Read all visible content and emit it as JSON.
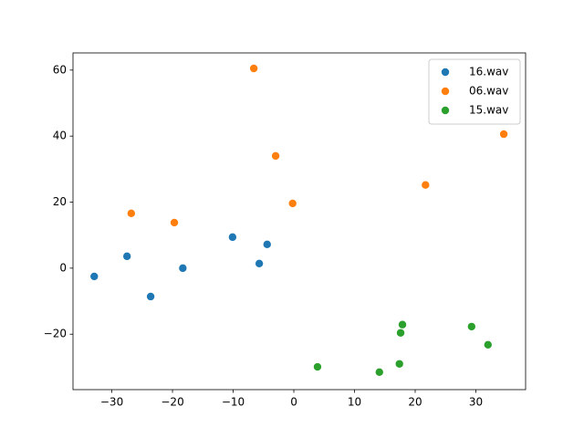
{
  "chart_data": {
    "type": "scatter",
    "series": [
      {
        "name": "16.wav",
        "color": "#1f77b4",
        "x": [
          -32.9,
          -27.5,
          -23.6,
          -18.3,
          -10.1,
          -5.7,
          -4.4
        ],
        "values": [
          -2.5,
          3.6,
          -8.6,
          0,
          9.4,
          1.4,
          7.2
        ]
      },
      {
        "name": "06.wav",
        "color": "#ff7f0e",
        "x": [
          -6.6,
          -3.0,
          -0.2,
          -26.8,
          -19.7,
          21.7,
          34.6
        ],
        "values": [
          60.5,
          34.0,
          19.6,
          16.6,
          13.8,
          25.2,
          40.6
        ]
      },
      {
        "name": "15.wav",
        "color": "#2ca02c",
        "x": [
          3.9,
          14.1,
          17.4,
          17.6,
          17.9,
          29.3,
          32.0
        ],
        "values": [
          -29.9,
          -31.5,
          -29.0,
          -19.6,
          -17.1,
          -17.7,
          -23.2
        ]
      }
    ],
    "xlim": [
      -36.4,
      38.2
    ],
    "ylim": [
      -36.8,
      65.2
    ],
    "xticks": [
      {
        "value": -30,
        "label": "−30"
      },
      {
        "value": -20,
        "label": "−20"
      },
      {
        "value": -10,
        "label": "−10"
      },
      0,
      10,
      20,
      30
    ],
    "yticks": [
      {
        "value": -20,
        "label": "−20"
      },
      0,
      20,
      40,
      60
    ],
    "legend": "upper right"
  }
}
